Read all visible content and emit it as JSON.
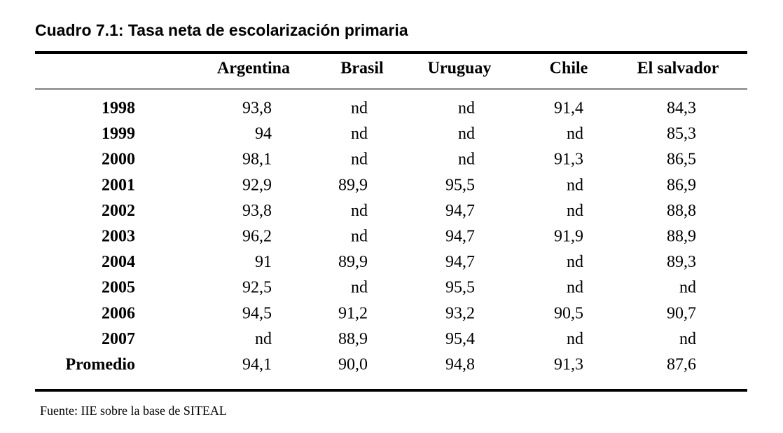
{
  "header": {
    "title": "Cuadro 7.1: Tasa neta de escolarización primaria"
  },
  "table": {
    "columns": [
      "Argentina",
      "Brasil",
      "Uruguay",
      "Chile",
      "El salvador"
    ],
    "rows": [
      [
        "1998",
        "93,8",
        "nd",
        "nd",
        "91,4",
        "84,3"
      ],
      [
        "1999",
        "94",
        "nd",
        "nd",
        "nd",
        "85,3"
      ],
      [
        "2000",
        "98,1",
        "nd",
        "nd",
        "91,3",
        "86,5"
      ],
      [
        "2001",
        "92,9",
        "89,9",
        "95,5",
        "nd",
        "86,9"
      ],
      [
        "2002",
        "93,8",
        "nd",
        "94,7",
        "nd",
        "88,8"
      ],
      [
        "2003",
        "96,2",
        "nd",
        "94,7",
        "91,9",
        "88,9"
      ],
      [
        "2004",
        "91",
        "89,9",
        "94,7",
        "nd",
        "89,3"
      ],
      [
        "2005",
        "92,5",
        "nd",
        "95,5",
        "nd",
        "nd"
      ],
      [
        "2006",
        "94,5",
        "91,2",
        "93,2",
        "90,5",
        "90,7"
      ],
      [
        "2007",
        "nd",
        "88,9",
        "95,4",
        "nd",
        "nd"
      ],
      [
        "Promedio",
        "94,1",
        "90,0",
        "94,8",
        "91,3",
        "87,6"
      ]
    ]
  },
  "footer": {
    "source": "Fuente: IIE sobre la base de SITEAL"
  }
}
